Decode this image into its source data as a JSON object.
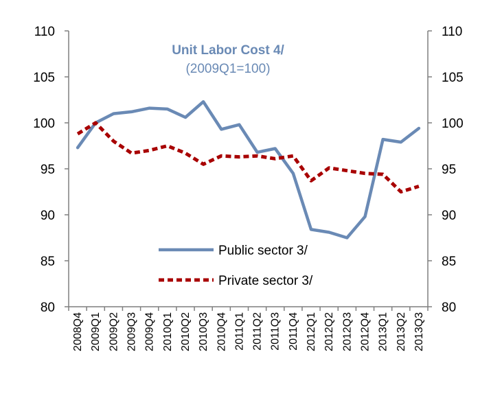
{
  "chart_data": {
    "type": "line",
    "title": "Unit Labor Cost 4/",
    "subtitle": "(2009Q1=100)",
    "xlabel": "",
    "ylabel": "",
    "ylim": [
      80,
      110
    ],
    "yticks": [
      80,
      85,
      90,
      95,
      100,
      105,
      110
    ],
    "y2ticks": [
      80,
      85,
      90,
      95,
      100,
      105,
      110
    ],
    "categories": [
      "2008Q4",
      "2009Q1",
      "2009Q2",
      "2009Q3",
      "2009Q4",
      "2010Q1",
      "2010Q2",
      "2010Q3",
      "2010Q4",
      "2011Q1",
      "2011Q2",
      "2011Q3",
      "2011Q4",
      "2012Q1",
      "2012Q2",
      "2012Q3",
      "2012Q4",
      "2013Q1",
      "2013Q2",
      "2013Q3"
    ],
    "series": [
      {
        "name": "Public sector 3/",
        "color": "#6a8ab5",
        "style": "solid",
        "values": [
          97.3,
          100.0,
          101.0,
          101.2,
          101.6,
          101.5,
          100.6,
          102.3,
          99.3,
          99.8,
          96.8,
          97.2,
          94.5,
          88.4,
          88.1,
          87.5,
          89.8,
          98.2,
          97.9,
          99.4
        ]
      },
      {
        "name": "Private sector 3/",
        "color": "#a80000",
        "style": "dashed",
        "values": [
          98.8,
          100.0,
          98.0,
          96.7,
          97.0,
          97.5,
          96.7,
          95.5,
          96.4,
          96.3,
          96.4,
          96.1,
          96.4,
          93.7,
          95.1,
          94.8,
          94.5,
          94.4,
          92.5,
          93.1
        ]
      }
    ],
    "legend": "center-bottom",
    "grid": false
  }
}
